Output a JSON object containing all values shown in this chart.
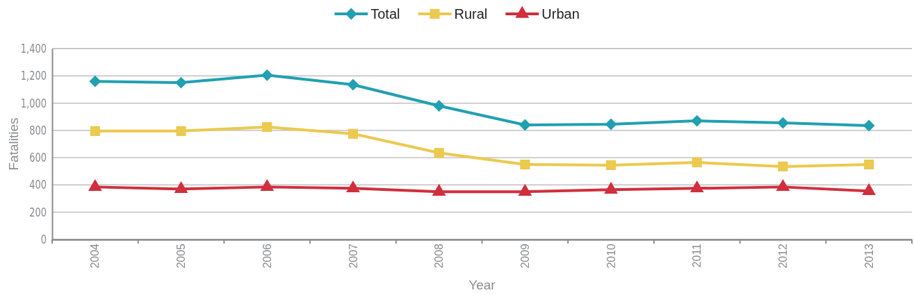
{
  "chart_data": {
    "type": "line",
    "xlabel": "Year",
    "ylabel": "Fatalities",
    "categories": [
      "2004",
      "2005",
      "2006",
      "2007",
      "2008",
      "2009",
      "2010",
      "2011",
      "2012",
      "2013"
    ],
    "series": [
      {
        "name": "Total",
        "color": "#21a0b1",
        "marker": "diamond",
        "values": [
          1160,
          1150,
          1205,
          1135,
          980,
          840,
          845,
          870,
          855,
          835
        ]
      },
      {
        "name": "Rural",
        "color": "#ecc94f",
        "marker": "square",
        "values": [
          795,
          795,
          825,
          775,
          635,
          550,
          545,
          565,
          535,
          550
        ]
      },
      {
        "name": "Urban",
        "color": "#d02f3e",
        "marker": "triangle",
        "values": [
          385,
          370,
          385,
          375,
          350,
          350,
          365,
          375,
          385,
          355
        ]
      }
    ],
    "ylim": [
      0,
      1400
    ],
    "yticks": [
      0,
      {
        "value": 200,
        "label": "200"
      },
      {
        "value": 400,
        "label": "400"
      },
      {
        "value": 600,
        "label": "600"
      },
      {
        "value": 800,
        "label": "800"
      },
      {
        "value": 1000,
        "label": "1,000"
      },
      {
        "value": 1200,
        "label": "1,200"
      },
      {
        "value": 1400,
        "label": "1,400"
      }
    ],
    "grid": "y",
    "legend": "top",
    "line_style": "solid"
  }
}
